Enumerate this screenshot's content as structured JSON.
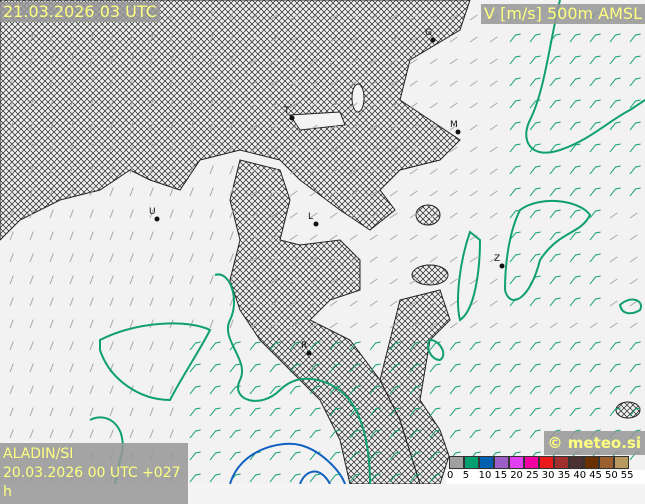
{
  "header": {
    "valid_time": "21.03.2026 03 UTC",
    "parameter": "V [m/s] 500m AMSL"
  },
  "footer": {
    "model": "ALADIN/SI",
    "run": "20.03.2026 00 UTC +027 h",
    "brand": "© meteo.si"
  },
  "legend": {
    "ticks": [
      "0",
      "5",
      "10",
      "15",
      "20",
      "25",
      "30",
      "35",
      "40",
      "45",
      "50",
      "55"
    ],
    "colors": [
      "#a0a0a0",
      "#00a070",
      "#0060b0",
      "#9a60c8",
      "#e040f0",
      "#f000a0",
      "#e81a1a",
      "#a03030",
      "#4a3030",
      "#6a3000",
      "#9a6030",
      "#b89a60"
    ]
  },
  "cities": [
    {
      "name": "G"
    },
    {
      "name": "M"
    },
    {
      "name": "T"
    },
    {
      "name": "U"
    },
    {
      "name": "L"
    },
    {
      "name": "Z"
    },
    {
      "name": "R"
    }
  ],
  "colors": {
    "contour_5": "#10a070",
    "contour_10": "#1060c0",
    "barb": "#a8a8a8",
    "terrain_hatch": "#222222"
  }
}
